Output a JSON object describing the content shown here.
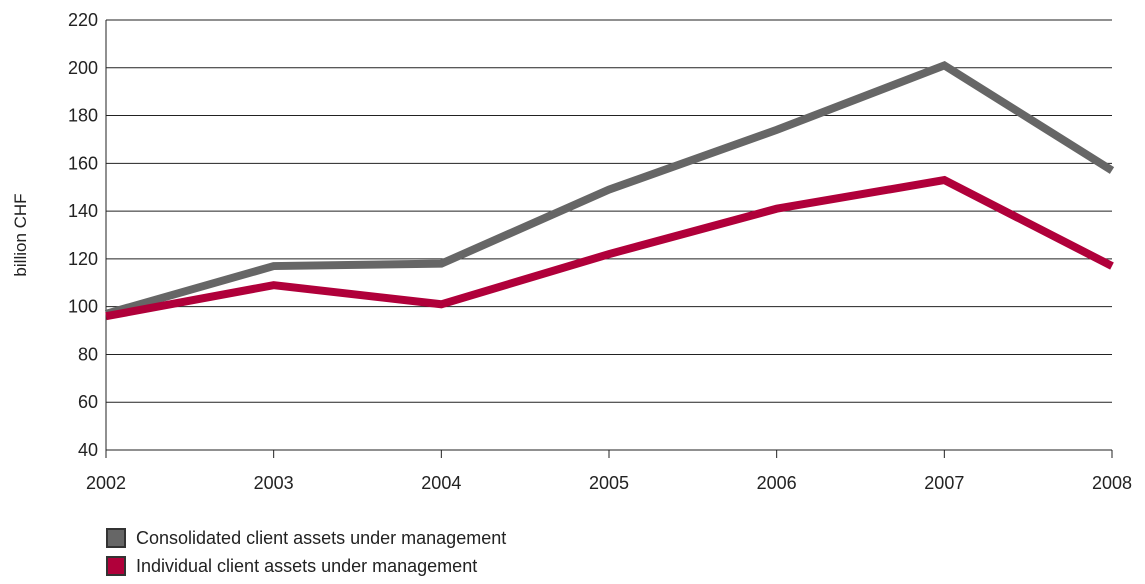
{
  "chart_data": {
    "type": "line",
    "title": "",
    "xlabel": "",
    "ylabel": "billion CHF",
    "x": [
      "2002",
      "2003",
      "2004",
      "2005",
      "2006",
      "2007",
      "2008"
    ],
    "ylim": [
      40,
      220
    ],
    "yticks": [
      40,
      60,
      80,
      100,
      120,
      140,
      160,
      180,
      200,
      220
    ],
    "grid": true,
    "legend_placement": "bottom-left",
    "series": [
      {
        "name": "Consolidated client assets under management",
        "color": "#666666",
        "values": [
          97,
          117,
          118,
          149,
          174,
          201,
          157
        ]
      },
      {
        "name": "Individual client assets under management",
        "color": "#b0003a",
        "values": [
          96,
          109,
          101,
          122,
          141,
          153,
          117
        ]
      }
    ]
  }
}
